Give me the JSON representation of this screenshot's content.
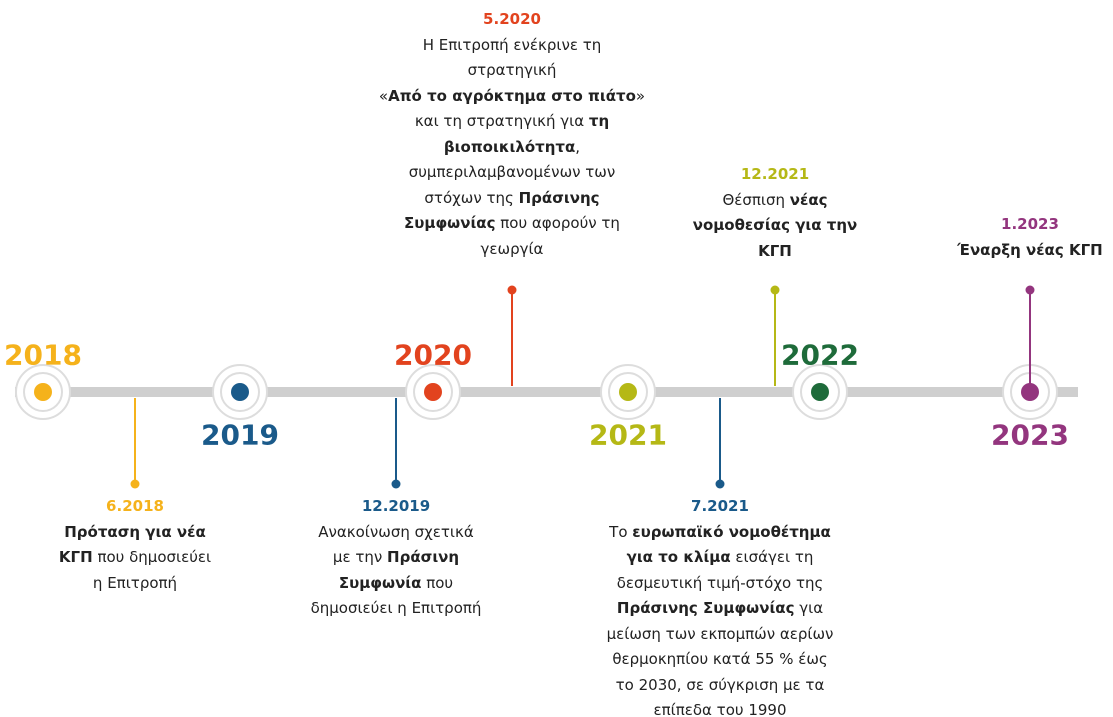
{
  "years": [
    {
      "label": "2018",
      "color": "#f5b21b",
      "position": "above"
    },
    {
      "label": "2019",
      "color": "#1a5a8a",
      "position": "below"
    },
    {
      "label": "2020",
      "color": "#e2431e",
      "position": "above"
    },
    {
      "label": "2021",
      "color": "#b5b816",
      "position": "below"
    },
    {
      "label": "2022",
      "color": "#1e6b3a",
      "position": "above"
    },
    {
      "label": "2023",
      "color": "#93357e",
      "position": "below"
    }
  ],
  "events": [
    {
      "date": "6.2018",
      "color": "#f5b21b",
      "direction": "down",
      "lines": [
        [
          {
            "text": "Πρόταση για νέα",
            "bold": true
          }
        ],
        [
          {
            "text": "ΚΓΠ",
            "bold": true
          },
          {
            "text": " που δημοσιεύει"
          }
        ],
        [
          {
            "text": "η Επιτροπή"
          }
        ]
      ]
    },
    {
      "date": "12.2019",
      "color": "#1a5a8a",
      "direction": "down",
      "lines": [
        [
          {
            "text": "Ανακοίνωση σχετικά"
          }
        ],
        [
          {
            "text": "με την "
          },
          {
            "text": "Πράσινη",
            "bold": true
          }
        ],
        [
          {
            "text": "Συμφωνία",
            "bold": true
          },
          {
            "text": " που"
          }
        ],
        [
          {
            "text": "δημοσιεύει η Επιτροπή"
          }
        ]
      ]
    },
    {
      "date": "5.2020",
      "color": "#e2431e",
      "direction": "up",
      "lines": [
        [
          {
            "text": "Η Επιτροπή ενέκρινε τη"
          }
        ],
        [
          {
            "text": "στρατηγική"
          }
        ],
        [
          {
            "text": "«"
          },
          {
            "text": "Από το αγρόκτημα στο πιάτο",
            "bold": true
          },
          {
            "text": "»"
          }
        ],
        [
          {
            "text": "και τη στρατηγική για "
          },
          {
            "text": "τη",
            "bold": true
          }
        ],
        [
          {
            "text": "βιοποικιλότητα",
            "bold": true
          },
          {
            "text": ","
          }
        ],
        [
          {
            "text": "συμπεριλαμβανομένων των"
          }
        ],
        [
          {
            "text": "στόχων της "
          },
          {
            "text": "Πράσινης",
            "bold": true
          }
        ],
        [
          {
            "text": "Συμφωνίας",
            "bold": true
          },
          {
            "text": " που αφορούν τη"
          }
        ],
        [
          {
            "text": "γεωργία"
          }
        ]
      ]
    },
    {
      "date": "7.2021",
      "color": "#1a5a8a",
      "direction": "down",
      "lines": [
        [
          {
            "text": "Το "
          },
          {
            "text": "ευρωπαϊκό νομοθέτημα",
            "bold": true
          }
        ],
        [
          {
            "text": "για το κλίμα",
            "bold": true
          },
          {
            "text": " εισάγει τη"
          }
        ],
        [
          {
            "text": "δεσμευτική τιμή-στόχο της"
          }
        ],
        [
          {
            "text": "Πράσινης Συμφωνίας",
            "bold": true
          },
          {
            "text": " για"
          }
        ],
        [
          {
            "text": "μείωση των εκπομπών αερίων"
          }
        ],
        [
          {
            "text": "θερμοκηπίου κατά 55 % έως"
          }
        ],
        [
          {
            "text": "το 2030, σε σύγκριση με τα"
          }
        ],
        [
          {
            "text": "επίπεδα του 1990"
          }
        ]
      ]
    },
    {
      "date": "12.2021",
      "color": "#b5b816",
      "direction": "up",
      "lines": [
        [
          {
            "text": "Θέσπιση "
          },
          {
            "text": "νέας",
            "bold": true
          }
        ],
        [
          {
            "text": "νομοθεσίας για την",
            "bold": true
          }
        ],
        [
          {
            "text": "ΚΓΠ",
            "bold": true
          }
        ]
      ]
    },
    {
      "date": "1.2023",
      "color": "#93357e",
      "direction": "up",
      "lines": [
        [
          {
            "text": "Έναρξη νέας ΚΓΠ",
            "bold": true
          }
        ]
      ]
    }
  ]
}
